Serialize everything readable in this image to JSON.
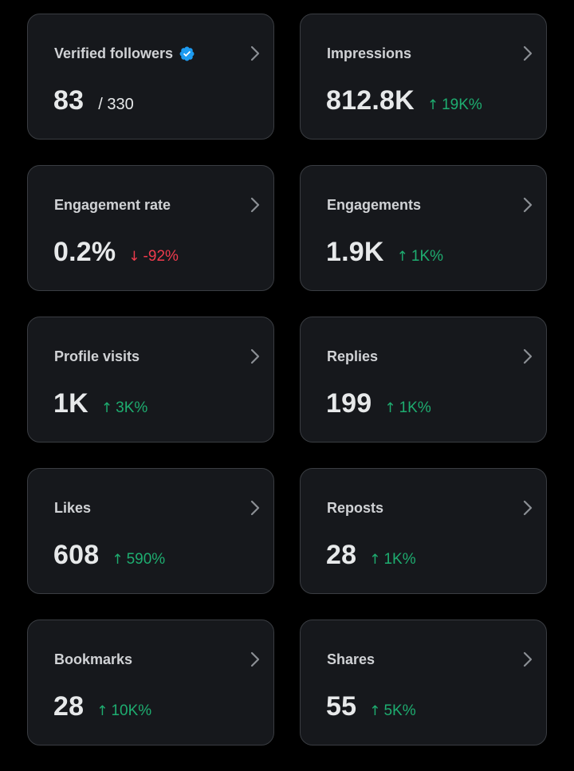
{
  "cards": [
    {
      "label": "Verified followers",
      "value": "83",
      "total": "/ 330",
      "verified": true
    },
    {
      "label": "Impressions",
      "value": "812.8K",
      "change": "19K%",
      "direction": "up",
      "arrow": "↑"
    },
    {
      "label": "Engagement rate",
      "value": "0.2%",
      "change": "-92%",
      "direction": "down",
      "arrow": "↓"
    },
    {
      "label": "Engagements",
      "value": "1.9K",
      "change": "1K%",
      "direction": "up",
      "arrow": "↑"
    },
    {
      "label": "Profile visits",
      "value": "1K",
      "change": "3K%",
      "direction": "up",
      "arrow": "↑"
    },
    {
      "label": "Replies",
      "value": "199",
      "change": "1K%",
      "direction": "up",
      "arrow": "↑"
    },
    {
      "label": "Likes",
      "value": "608",
      "change": "590%",
      "direction": "up",
      "arrow": "↑"
    },
    {
      "label": "Reposts",
      "value": "28",
      "change": "1K%",
      "direction": "up",
      "arrow": "↑"
    },
    {
      "label": "Bookmarks",
      "value": "28",
      "change": "10K%",
      "direction": "up",
      "arrow": "↑"
    },
    {
      "label": "Shares",
      "value": "55",
      "change": "5K%",
      "direction": "up",
      "arrow": "↑"
    }
  ],
  "icons": {
    "chevron": "chevron-right-icon",
    "verified": "verified-badge-icon"
  },
  "colors": {
    "background": "#000000",
    "card": "#16181c",
    "border": "#3a3d42",
    "positive": "#1ead70",
    "negative": "#ef3b4d",
    "verified": "#1d9bf0"
  }
}
